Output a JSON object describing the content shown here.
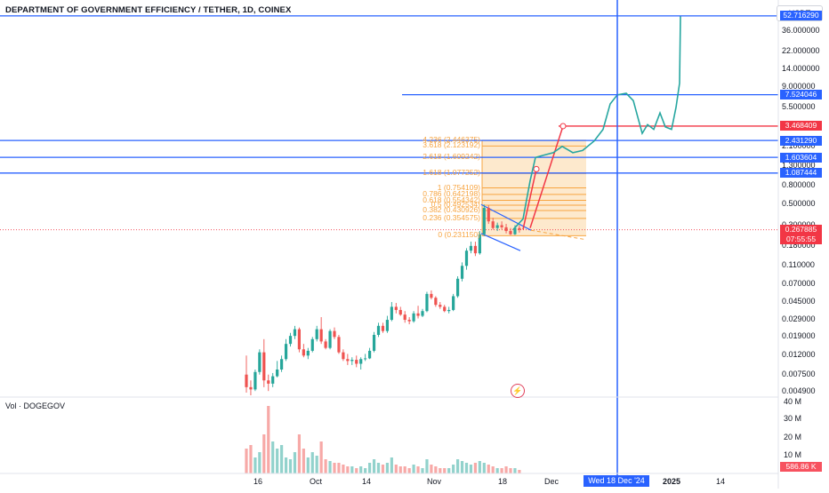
{
  "header": {
    "title": "DEPARTMENT OF GOVERNMENT EFFICIENCY / TETHER, 1D, COINEX",
    "currency": "USDT",
    "volume_label": "Vol · DOGEGOV"
  },
  "price_axis": {
    "ticks": [
      "36.000000",
      "22.000000",
      "14.000000",
      "9.000000",
      "5.500000",
      "2.100000",
      "1.300000",
      "0.800000",
      "0.500000",
      "0.300000",
      "0.180000",
      "0.110000",
      "0.070000",
      "0.045000",
      "0.029000",
      "0.019000",
      "0.012000",
      "0.007500",
      "0.004900"
    ]
  },
  "price_tags": [
    {
      "label": "52.716290",
      "color": "#2962ff"
    },
    {
      "label": "7.524046",
      "color": "#2962ff"
    },
    {
      "label": "3.468409",
      "color": "#f23645"
    },
    {
      "label": "2.431290",
      "color": "#2962ff"
    },
    {
      "label": "1.603604",
      "color": "#2962ff"
    },
    {
      "label": "1.087444",
      "color": "#2962ff"
    },
    {
      "label": "0.267885",
      "color": "#f23645"
    },
    {
      "label": "07:55:55",
      "color": "#f23645"
    }
  ],
  "volume_axis": {
    "ticks": [
      "40 M",
      "30 M",
      "20 M",
      "10 M"
    ],
    "current": "586.86 K"
  },
  "time_axis": {
    "ticks": [
      "16",
      "Oct",
      "14",
      "Nov",
      "18",
      "Dec",
      "2025",
      "14"
    ],
    "crosshair_date": "Wed 18 Dec '24"
  },
  "fibonacci": {
    "levels": [
      "4.236 (2.446375)",
      "3.618 (2.123192)",
      "2.618 (1.609242)",
      "1.618 (1.077252)",
      "1 (0.754109)",
      "0.786 (0.642198)",
      "0.618 (0.554342)",
      "0.5 (0.492534)",
      "0.382 (0.430926)",
      "0.236 (0.354575)",
      "0 (0.231150)"
    ],
    "color": "#f7a440"
  },
  "icons": {
    "indicator": "lightning-icon"
  },
  "chart_data": {
    "type": "candlestick",
    "title": "DEPARTMENT OF GOVERNMENT EFFICIENCY / TETHER, 1D, COINEX",
    "y_scale": "log",
    "ylim": [
      0.0045,
      60
    ],
    "up_color": "#26a69a",
    "down_color": "#ef5350",
    "horizontal_levels": [
      52.71629,
      7.524046,
      3.468409,
      2.43129,
      1.603604,
      1.087444
    ],
    "last_price": 0.267885,
    "candles": [
      {
        "o": 0.0075,
        "h": 0.012,
        "l": 0.0048,
        "c": 0.0055,
        "v": 14
      },
      {
        "o": 0.0055,
        "h": 0.0065,
        "l": 0.0045,
        "c": 0.0052,
        "v": 16
      },
      {
        "o": 0.0052,
        "h": 0.0085,
        "l": 0.005,
        "c": 0.008,
        "v": 9
      },
      {
        "o": 0.008,
        "h": 0.014,
        "l": 0.0075,
        "c": 0.013,
        "v": 12
      },
      {
        "o": 0.013,
        "h": 0.018,
        "l": 0.0055,
        "c": 0.0065,
        "v": 22
      },
      {
        "o": 0.0065,
        "h": 0.0075,
        "l": 0.005,
        "c": 0.006,
        "v": 38
      },
      {
        "o": 0.006,
        "h": 0.0078,
        "l": 0.0055,
        "c": 0.0072,
        "v": 18
      },
      {
        "o": 0.0072,
        "h": 0.0105,
        "l": 0.007,
        "c": 0.0085,
        "v": 14
      },
      {
        "o": 0.0085,
        "h": 0.012,
        "l": 0.008,
        "c": 0.011,
        "v": 16
      },
      {
        "o": 0.011,
        "h": 0.018,
        "l": 0.0105,
        "c": 0.016,
        "v": 9
      },
      {
        "o": 0.016,
        "h": 0.021,
        "l": 0.015,
        "c": 0.0195,
        "v": 8
      },
      {
        "o": 0.0195,
        "h": 0.025,
        "l": 0.018,
        "c": 0.023,
        "v": 12
      },
      {
        "o": 0.023,
        "h": 0.024,
        "l": 0.013,
        "c": 0.014,
        "v": 22
      },
      {
        "o": 0.014,
        "h": 0.016,
        "l": 0.0115,
        "c": 0.012,
        "v": 14
      },
      {
        "o": 0.012,
        "h": 0.0145,
        "l": 0.011,
        "c": 0.0135,
        "v": 9
      },
      {
        "o": 0.0135,
        "h": 0.019,
        "l": 0.013,
        "c": 0.018,
        "v": 12
      },
      {
        "o": 0.018,
        "h": 0.025,
        "l": 0.017,
        "c": 0.023,
        "v": 10
      },
      {
        "o": 0.023,
        "h": 0.031,
        "l": 0.016,
        "c": 0.017,
        "v": 18
      },
      {
        "o": 0.017,
        "h": 0.018,
        "l": 0.014,
        "c": 0.0145,
        "v": 8
      },
      {
        "o": 0.0145,
        "h": 0.023,
        "l": 0.014,
        "c": 0.022,
        "v": 7
      },
      {
        "o": 0.022,
        "h": 0.024,
        "l": 0.018,
        "c": 0.019,
        "v": 6
      },
      {
        "o": 0.019,
        "h": 0.02,
        "l": 0.0125,
        "c": 0.013,
        "v": 6
      },
      {
        "o": 0.013,
        "h": 0.014,
        "l": 0.0105,
        "c": 0.011,
        "v": 5
      },
      {
        "o": 0.011,
        "h": 0.0125,
        "l": 0.0095,
        "c": 0.0105,
        "v": 4
      },
      {
        "o": 0.0105,
        "h": 0.0115,
        "l": 0.0095,
        "c": 0.0108,
        "v": 4
      },
      {
        "o": 0.0108,
        "h": 0.012,
        "l": 0.009,
        "c": 0.0098,
        "v": 3
      },
      {
        "o": 0.0098,
        "h": 0.0115,
        "l": 0.0085,
        "c": 0.011,
        "v": 4
      },
      {
        "o": 0.011,
        "h": 0.0125,
        "l": 0.0105,
        "c": 0.0112,
        "v": 3
      },
      {
        "o": 0.0112,
        "h": 0.0145,
        "l": 0.011,
        "c": 0.0135,
        "v": 6
      },
      {
        "o": 0.0135,
        "h": 0.0215,
        "l": 0.013,
        "c": 0.02,
        "v": 8
      },
      {
        "o": 0.02,
        "h": 0.027,
        "l": 0.019,
        "c": 0.025,
        "v": 6
      },
      {
        "o": 0.025,
        "h": 0.027,
        "l": 0.021,
        "c": 0.022,
        "v": 5
      },
      {
        "o": 0.022,
        "h": 0.032,
        "l": 0.021,
        "c": 0.029,
        "v": 6
      },
      {
        "o": 0.029,
        "h": 0.045,
        "l": 0.028,
        "c": 0.04,
        "v": 9
      },
      {
        "o": 0.04,
        "h": 0.044,
        "l": 0.034,
        "c": 0.037,
        "v": 5
      },
      {
        "o": 0.037,
        "h": 0.04,
        "l": 0.032,
        "c": 0.033,
        "v": 4
      },
      {
        "o": 0.033,
        "h": 0.036,
        "l": 0.027,
        "c": 0.029,
        "v": 4
      },
      {
        "o": 0.029,
        "h": 0.031,
        "l": 0.026,
        "c": 0.028,
        "v": 3
      },
      {
        "o": 0.028,
        "h": 0.036,
        "l": 0.027,
        "c": 0.034,
        "v": 5
      },
      {
        "o": 0.034,
        "h": 0.041,
        "l": 0.03,
        "c": 0.032,
        "v": 4
      },
      {
        "o": 0.032,
        "h": 0.038,
        "l": 0.031,
        "c": 0.036,
        "v": 3
      },
      {
        "o": 0.036,
        "h": 0.058,
        "l": 0.035,
        "c": 0.055,
        "v": 8
      },
      {
        "o": 0.055,
        "h": 0.06,
        "l": 0.048,
        "c": 0.05,
        "v": 5
      },
      {
        "o": 0.05,
        "h": 0.052,
        "l": 0.04,
        "c": 0.042,
        "v": 4
      },
      {
        "o": 0.042,
        "h": 0.045,
        "l": 0.038,
        "c": 0.04,
        "v": 3
      },
      {
        "o": 0.04,
        "h": 0.042,
        "l": 0.035,
        "c": 0.036,
        "v": 3
      },
      {
        "o": 0.036,
        "h": 0.04,
        "l": 0.034,
        "c": 0.037,
        "v": 3
      },
      {
        "o": 0.037,
        "h": 0.055,
        "l": 0.036,
        "c": 0.052,
        "v": 5
      },
      {
        "o": 0.052,
        "h": 0.085,
        "l": 0.05,
        "c": 0.08,
        "v": 8
      },
      {
        "o": 0.08,
        "h": 0.12,
        "l": 0.075,
        "c": 0.11,
        "v": 7
      },
      {
        "o": 0.11,
        "h": 0.17,
        "l": 0.1,
        "c": 0.16,
        "v": 6
      },
      {
        "o": 0.16,
        "h": 0.2,
        "l": 0.15,
        "c": 0.18,
        "v": 5
      },
      {
        "o": 0.18,
        "h": 0.2,
        "l": 0.14,
        "c": 0.15,
        "v": 6
      },
      {
        "o": 0.15,
        "h": 0.26,
        "l": 0.145,
        "c": 0.24,
        "v": 7
      },
      {
        "o": 0.24,
        "h": 0.5,
        "l": 0.23,
        "c": 0.46,
        "v": 6
      },
      {
        "o": 0.46,
        "h": 0.49,
        "l": 0.31,
        "c": 0.33,
        "v": 5
      },
      {
        "o": 0.33,
        "h": 0.36,
        "l": 0.27,
        "c": 0.28,
        "v": 4
      },
      {
        "o": 0.28,
        "h": 0.32,
        "l": 0.26,
        "c": 0.3,
        "v": 3
      },
      {
        "o": 0.3,
        "h": 0.33,
        "l": 0.27,
        "c": 0.285,
        "v": 3
      },
      {
        "o": 0.285,
        "h": 0.31,
        "l": 0.245,
        "c": 0.26,
        "v": 4
      },
      {
        "o": 0.26,
        "h": 0.28,
        "l": 0.235,
        "c": 0.24,
        "v": 3
      },
      {
        "o": 0.24,
        "h": 0.3,
        "l": 0.235,
        "c": 0.28,
        "v": 3
      },
      {
        "o": 0.28,
        "h": 0.3,
        "l": 0.25,
        "c": 0.268,
        "v": 2
      }
    ]
  }
}
